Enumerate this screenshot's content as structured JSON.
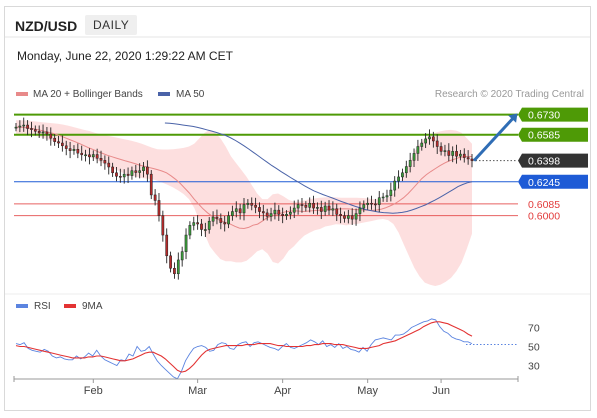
{
  "header": {
    "symbol": "NZD/USD",
    "timeframe": "DAILY",
    "datetime": "Monday, June 22, 2020 1:29:22 AM CET"
  },
  "legend": {
    "bb_label": "MA 20 + Bollinger Bands",
    "ma50_label": "MA 50",
    "credit": "Research © 2020 Trading Central",
    "rsi_label": "RSI",
    "rsi_ma_label": "9MA"
  },
  "colors": {
    "resistance": "#4e9a06",
    "support": "#1e5bd6",
    "pivot": "#333333",
    "target": "#e23b3b",
    "bb_fill": "#fcd4d4",
    "ma20": "#e88a8a",
    "ma50": "#4a63a8",
    "rsi": "#5b84e0",
    "rsi_ma": "#e33333",
    "arrow": "#2f6db5"
  },
  "chart_data": [
    {
      "type": "candlestick",
      "title": "NZD/USD DAILY",
      "x_ticks": [
        "Feb",
        "Mar",
        "Apr",
        "May",
        "Jun"
      ],
      "ylim": [
        0.547,
        0.68
      ],
      "levels": [
        {
          "value": 0.673,
          "label": "0.6730",
          "kind": "resistance"
        },
        {
          "value": 0.6585,
          "label": "0.6585",
          "kind": "resistance"
        },
        {
          "value": 0.6398,
          "label": "0.6398",
          "kind": "pivot"
        },
        {
          "value": 0.6245,
          "label": "0.6245",
          "kind": "support"
        },
        {
          "value": 0.6085,
          "label": "0.6085",
          "kind": "target"
        },
        {
          "value": 0.6,
          "label": "0.6000",
          "kind": "target"
        }
      ],
      "close": [
        0.664,
        0.6648,
        0.6655,
        0.663,
        0.6622,
        0.661,
        0.6598,
        0.6605,
        0.659,
        0.656,
        0.6535,
        0.6525,
        0.6505,
        0.6485,
        0.647,
        0.648,
        0.6452,
        0.644,
        0.644,
        0.6425,
        0.6442,
        0.6415,
        0.64,
        0.638,
        0.6352,
        0.631,
        0.6285,
        0.628,
        0.63,
        0.629,
        0.6325,
        0.6312,
        0.6325,
        0.6352,
        0.63,
        0.615,
        0.611,
        0.6,
        0.586,
        0.571,
        0.562,
        0.558,
        0.568,
        0.574,
        0.586,
        0.593,
        0.595,
        0.594,
        0.59,
        0.59,
        0.596,
        0.599,
        0.598,
        0.595,
        0.594,
        0.6,
        0.603,
        0.605,
        0.602,
        0.608,
        0.609,
        0.6075,
        0.606,
        0.603,
        0.602,
        0.5995,
        0.6015,
        0.604,
        0.601,
        0.6,
        0.601,
        0.6025,
        0.6055,
        0.608,
        0.6075,
        0.606,
        0.609,
        0.6055,
        0.606,
        0.603,
        0.607,
        0.604,
        0.605,
        0.601,
        0.6,
        0.598,
        0.6,
        0.5975,
        0.6015,
        0.6055,
        0.608,
        0.609,
        0.6085,
        0.608,
        0.613,
        0.6135,
        0.6145,
        0.6185,
        0.625,
        0.628,
        0.631,
        0.6355,
        0.64,
        0.645,
        0.65,
        0.6525,
        0.6555,
        0.657,
        0.654,
        0.65,
        0.6465,
        0.647,
        0.6435,
        0.6465,
        0.643,
        0.6445,
        0.642,
        0.641,
        0.6398
      ],
      "ma20": [
        0.664,
        0.664,
        0.6637,
        0.6632,
        0.6627,
        0.662,
        0.6612,
        0.6604,
        0.6596,
        0.6586,
        0.6574,
        0.656,
        0.6547,
        0.6534,
        0.652,
        0.6505,
        0.649,
        0.6477,
        0.6462,
        0.645,
        0.6437,
        0.6426,
        0.6416,
        0.6406,
        0.6396,
        0.6387,
        0.6377,
        0.6366,
        0.6358,
        0.635,
        0.6342,
        0.6333,
        0.6323,
        0.631,
        0.6288,
        0.6263,
        0.6233,
        0.6199,
        0.6164,
        0.6123,
        0.6085,
        0.605,
        0.6021,
        0.5996,
        0.5977,
        0.5963,
        0.5951,
        0.5939,
        0.5923,
        0.591,
        0.5907,
        0.5915,
        0.5931,
        0.5939,
        0.596,
        0.5983,
        0.5998,
        0.601,
        0.6017,
        0.6027,
        0.6032,
        0.6035,
        0.6033,
        0.603,
        0.6033,
        0.6035,
        0.6038,
        0.604,
        0.6041,
        0.6045,
        0.6047,
        0.6049,
        0.605,
        0.6049,
        0.6045,
        0.6043,
        0.6042,
        0.604,
        0.6038,
        0.604,
        0.6046,
        0.6056,
        0.607,
        0.6085,
        0.6106,
        0.613,
        0.616,
        0.6195,
        0.6232,
        0.6268,
        0.6297,
        0.632,
        0.6341,
        0.6362,
        0.638,
        0.6396,
        0.6407,
        0.6418,
        0.6424,
        0.6428,
        0.6428
      ],
      "bb_upper": [
        0.669,
        0.669,
        0.6688,
        0.6684,
        0.668,
        0.6676,
        0.6672,
        0.6668,
        0.6664,
        0.6658,
        0.665,
        0.664,
        0.663,
        0.662,
        0.6612,
        0.66,
        0.659,
        0.6582,
        0.6574,
        0.6566,
        0.6558,
        0.655,
        0.6542,
        0.6532,
        0.652,
        0.6506,
        0.6491,
        0.648,
        0.6478,
        0.6478,
        0.648,
        0.6485,
        0.649,
        0.65,
        0.652,
        0.656,
        0.66,
        0.662,
        0.66,
        0.656,
        0.65,
        0.643,
        0.638,
        0.633,
        0.628,
        0.622,
        0.616,
        0.612,
        0.612,
        0.6155,
        0.616,
        0.614,
        0.6115,
        0.61,
        0.61,
        0.611,
        0.612,
        0.6125,
        0.613,
        0.6132,
        0.6135,
        0.6132,
        0.613,
        0.613,
        0.613,
        0.613,
        0.6128,
        0.6125,
        0.612,
        0.6118,
        0.6118,
        0.613,
        0.616,
        0.622,
        0.63,
        0.638,
        0.646,
        0.652,
        0.656,
        0.658,
        0.66,
        0.661,
        0.6618,
        0.662,
        0.6615,
        0.66,
        0.656,
        0.652
      ],
      "bb_lower": [
        0.659,
        0.659,
        0.6586,
        0.658,
        0.6574,
        0.6564,
        0.6552,
        0.654,
        0.6528,
        0.6514,
        0.6498,
        0.648,
        0.6464,
        0.6448,
        0.6428,
        0.641,
        0.639,
        0.6372,
        0.635,
        0.6334,
        0.6316,
        0.6302,
        0.629,
        0.628,
        0.6272,
        0.6268,
        0.6263,
        0.6252,
        0.6238,
        0.6222,
        0.6204,
        0.6181,
        0.6156,
        0.612,
        0.6056,
        0.5966,
        0.5866,
        0.5778,
        0.5728,
        0.5686,
        0.567,
        0.567,
        0.5662,
        0.5662,
        0.5674,
        0.5706,
        0.5742,
        0.5758,
        0.5726,
        0.5665,
        0.5654,
        0.569,
        0.5747,
        0.5778,
        0.582,
        0.5856,
        0.5876,
        0.5895,
        0.5904,
        0.5922,
        0.5929,
        0.5938,
        0.5936,
        0.593,
        0.5936,
        0.594,
        0.5948,
        0.5955,
        0.5962,
        0.5972,
        0.5976,
        0.5968,
        0.594,
        0.5878,
        0.579,
        0.5706,
        0.5624,
        0.556,
        0.5516,
        0.55,
        0.5492,
        0.5502,
        0.5522,
        0.555,
        0.5597,
        0.566,
        0.576,
        0.587
      ],
      "ma50": [
        0.667,
        0.6668,
        0.6665,
        0.666,
        0.6655,
        0.665,
        0.6645,
        0.6638,
        0.663,
        0.6621,
        0.6612,
        0.6602,
        0.6592,
        0.658,
        0.6565,
        0.6547,
        0.6527,
        0.6505,
        0.6482,
        0.6458,
        0.6434,
        0.641,
        0.6386,
        0.6362,
        0.634,
        0.6318,
        0.6297,
        0.6276,
        0.6256,
        0.6236,
        0.6216,
        0.6198,
        0.618,
        0.6166,
        0.6152,
        0.614,
        0.6128,
        0.6115,
        0.6102,
        0.609,
        0.6078,
        0.6066,
        0.6056,
        0.6045,
        0.6038,
        0.6032,
        0.6026,
        0.6022,
        0.602,
        0.6018,
        0.602,
        0.6024,
        0.603,
        0.604,
        0.6052,
        0.6065,
        0.6078,
        0.6095,
        0.6112,
        0.613,
        0.615,
        0.617,
        0.619,
        0.621,
        0.6225,
        0.6238,
        0.6245
      ],
      "ma50_start_index": 32
    },
    {
      "type": "line",
      "title": "RSI",
      "x_ticks": [
        "Feb",
        "Mar",
        "Apr",
        "May",
        "Jun"
      ],
      "y_ticks": [
        "70",
        "50",
        "30"
      ],
      "ylim": [
        20,
        80
      ],
      "series": [
        {
          "name": "RSI",
          "values": [
            53,
            52,
            54,
            48,
            46,
            45,
            44,
            47,
            45,
            40,
            38,
            39,
            37,
            36,
            36,
            40,
            37,
            39,
            43,
            40,
            46,
            40,
            36,
            34,
            32,
            30,
            36,
            35,
            42,
            40,
            50,
            45,
            46,
            50,
            42,
            35,
            30,
            26,
            22,
            18,
            16,
            24,
            35,
            42,
            48,
            50,
            51,
            49,
            45,
            46,
            52,
            54,
            53,
            48,
            47,
            52,
            54,
            55,
            50,
            54,
            55,
            53,
            51,
            49,
            48,
            46,
            50,
            53,
            49,
            48,
            50,
            52,
            54,
            57,
            55,
            52,
            56,
            50,
            52,
            49,
            53,
            48,
            50,
            47,
            46,
            44,
            49,
            45,
            52,
            57,
            58,
            59,
            58,
            57,
            62,
            62,
            63,
            66,
            70,
            72,
            74,
            76,
            77,
            79,
            78,
            71,
            66,
            64,
            60,
            58,
            57,
            55,
            55,
            53
          ],
          "start_index": 0
        },
        {
          "name": "9MA",
          "values": [
            51,
            50,
            50,
            49,
            48,
            47,
            46,
            45,
            44,
            43,
            42,
            41,
            40,
            39,
            38,
            38,
            38,
            38,
            39,
            39,
            40,
            40,
            39,
            38,
            37,
            36,
            35,
            35,
            36,
            37,
            39,
            41,
            43,
            44,
            44,
            42,
            40,
            37,
            33,
            29,
            25,
            23,
            24,
            27,
            31,
            36,
            41,
            45,
            47,
            48,
            49,
            50,
            51,
            51,
            51,
            51,
            51,
            52,
            52,
            52,
            53,
            53,
            53,
            53,
            52,
            51,
            51,
            50,
            50,
            50,
            50,
            50,
            51,
            51,
            52,
            52,
            53,
            53,
            53,
            52,
            52,
            52,
            51,
            50,
            49,
            48,
            48,
            48,
            49,
            50,
            51,
            53,
            54,
            55,
            56,
            58,
            60,
            62,
            64,
            66,
            68,
            71,
            73,
            75,
            76,
            76,
            75,
            74,
            72,
            70,
            68,
            66,
            63,
            61
          ],
          "start_index": 0
        }
      ]
    }
  ]
}
